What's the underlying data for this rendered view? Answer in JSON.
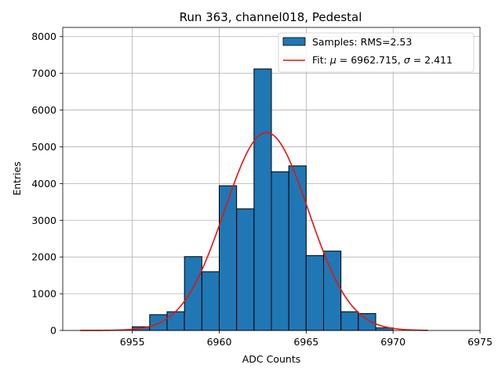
{
  "chart_data": {
    "type": "bar",
    "title": "Run 363, channel018, Pedestal",
    "xlabel": "ADC Counts",
    "ylabel": "Entries",
    "xlim": [
      6951.0,
      6975.0
    ],
    "ylim": [
      0,
      8250
    ],
    "xticks": [
      6955,
      6960,
      6965,
      6970,
      6975
    ],
    "yticks": [
      0,
      1000,
      2000,
      3000,
      4000,
      5000,
      6000,
      7000,
      8000
    ],
    "grid": true,
    "legend_position": "top-right",
    "bin_width": 1,
    "bins": [
      {
        "left": 6955,
        "value": 100
      },
      {
        "left": 6956,
        "value": 430
      },
      {
        "left": 6957,
        "value": 510
      },
      {
        "left": 6958,
        "value": 2010
      },
      {
        "left": 6959,
        "value": 1600
      },
      {
        "left": 6960,
        "value": 3940
      },
      {
        "left": 6961,
        "value": 3310
      },
      {
        "left": 6962,
        "value": 7120
      },
      {
        "left": 6963,
        "value": 4320
      },
      {
        "left": 6964,
        "value": 4480
      },
      {
        "left": 6965,
        "value": 2040
      },
      {
        "left": 6966,
        "value": 2160
      },
      {
        "left": 6967,
        "value": 510
      },
      {
        "left": 6968,
        "value": 460
      },
      {
        "left": 6969,
        "value": 70
      }
    ],
    "fit": {
      "mu": 6962.715,
      "sigma": 2.411,
      "amplitude": 5390,
      "x_range": [
        6952,
        6972
      ]
    },
    "series": [
      {
        "name": "Samples: RMS=2.53",
        "kind": "histogram",
        "color": "#1f77b4"
      },
      {
        "name": "Fit: μ = 6962.715, σ = 2.411",
        "kind": "line",
        "color": "#e8130c"
      }
    ]
  },
  "legend": {
    "samples_label": "Samples: RMS=2.53",
    "fit_prefix": "Fit: ",
    "fit_mu_symbol": "μ",
    "fit_mu_value": " = 6962.715, ",
    "fit_sigma_symbol": "σ",
    "fit_sigma_value": " = 2.411"
  }
}
